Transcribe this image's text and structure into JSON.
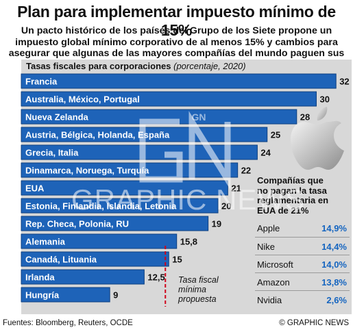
{
  "title": "Plan para implementar impuesto mínimo de 15%",
  "subtitle": "Un pacto histórico de los países del Grupo de los Siete propone un impuesto global mínimo corporativo de al menos 15% y cambios para asegurar que algunas de las mayores compañías del mundo paguen sus impuestos",
  "colors": {
    "bar": "#1e63b8",
    "bar_border": "#0d3f80",
    "accent_rate": "#1565c0",
    "threshold_line": "#d0021b",
    "panel_bg": "#d8d8d8"
  },
  "chart_data": {
    "type": "bar",
    "orientation": "horizontal",
    "title": "Tasas fiscales para corporaciones",
    "unit_note": "(porcentaje, 2020)",
    "categories": [
      "Francia",
      "Australia, México, Portugal",
      "Nueva Zelanda",
      "Austria, Bélgica, Holanda, España",
      "Grecia, Italia",
      "Dinamarca, Noruega, Turquía",
      "EUA",
      "Estonia, Finlandia, Islandia, Letonia",
      "Rep. Checa, Polonia, RU",
      "Alemania",
      "Canadá, Lituania",
      "Irlanda",
      "Hungría"
    ],
    "values": [
      32,
      30,
      28,
      25,
      24,
      22,
      21,
      20,
      19,
      15.8,
      15,
      12.5,
      9
    ],
    "value_labels": [
      "32",
      "30",
      "28",
      "25",
      "24",
      "22",
      "21",
      "20",
      "19",
      "15,8",
      "15",
      "12,5",
      "9"
    ],
    "xlim": [
      0,
      32
    ],
    "threshold": {
      "value": 15,
      "label": "Tasa fiscal mínima propuesta"
    },
    "grid": false
  },
  "threshold_note_lines": [
    "Tasa fiscal",
    "mínima",
    "propuesta"
  ],
  "panel": {
    "heading_lines": [
      "Compañías que",
      "no pagan la tasa",
      "reglamentaria en",
      "EUA de 21%"
    ],
    "companies": [
      {
        "name": "Apple",
        "rate": "14,9%"
      },
      {
        "name": "Nike",
        "rate": "14,4%"
      },
      {
        "name": "Microsoft",
        "rate": "14,0%"
      },
      {
        "name": "Amazon",
        "rate": "13,8%"
      },
      {
        "name": "Nvidia",
        "rate": "2,6%"
      }
    ]
  },
  "watermark": {
    "monogram": "GN",
    "text": "GRAPHIC NEWS"
  },
  "footer": {
    "source": "Fuentes:  Bloomberg, Reuters, OCDE",
    "credit": "© GRAPHIC NEWS"
  },
  "logo_icon": "apple-logo-icon"
}
